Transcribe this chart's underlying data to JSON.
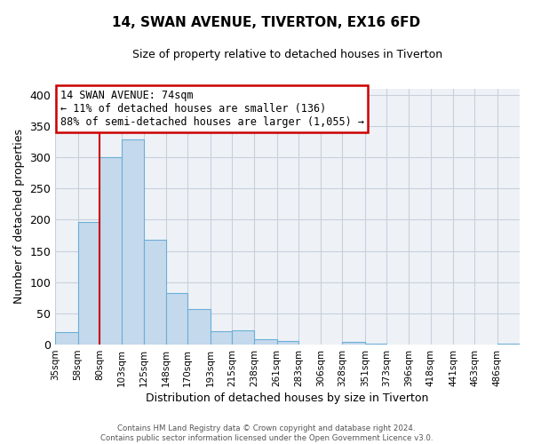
{
  "title": "14, SWAN AVENUE, TIVERTON, EX16 6FD",
  "subtitle": "Size of property relative to detached houses in Tiverton",
  "xlabel": "Distribution of detached houses by size in Tiverton",
  "ylabel": "Number of detached properties",
  "bin_labels": [
    "35sqm",
    "58sqm",
    "80sqm",
    "103sqm",
    "125sqm",
    "148sqm",
    "170sqm",
    "193sqm",
    "215sqm",
    "238sqm",
    "261sqm",
    "283sqm",
    "306sqm",
    "328sqm",
    "351sqm",
    "373sqm",
    "396sqm",
    "418sqm",
    "441sqm",
    "463sqm",
    "486sqm"
  ],
  "bar_values": [
    20,
    197,
    300,
    328,
    168,
    82,
    57,
    21,
    23,
    8,
    6,
    0,
    0,
    5,
    2,
    0,
    0,
    0,
    0,
    0,
    2
  ],
  "bar_color": "#c5d9ed",
  "bar_edge_color": "#6baed6",
  "property_line_x": 80,
  "property_line_color": "#cc0000",
  "ylim": [
    0,
    410
  ],
  "yticks": [
    0,
    50,
    100,
    150,
    200,
    250,
    300,
    350,
    400
  ],
  "annotation_title": "14 SWAN AVENUE: 74sqm",
  "annotation_line1": "← 11% of detached houses are smaller (136)",
  "annotation_line2": "88% of semi-detached houses are larger (1,055) →",
  "annotation_box_color": "#ffffff",
  "annotation_box_edge": "#cc0000",
  "footer_line1": "Contains HM Land Registry data © Crown copyright and database right 2024.",
  "footer_line2": "Contains public sector information licensed under the Open Government Licence v3.0.",
  "bin_edges": [
    35,
    58,
    80,
    103,
    125,
    148,
    170,
    193,
    215,
    238,
    261,
    283,
    306,
    328,
    351,
    373,
    396,
    418,
    441,
    463,
    486,
    509
  ],
  "background_color": "#eef2f7",
  "grid_color": "#c8d0dc"
}
